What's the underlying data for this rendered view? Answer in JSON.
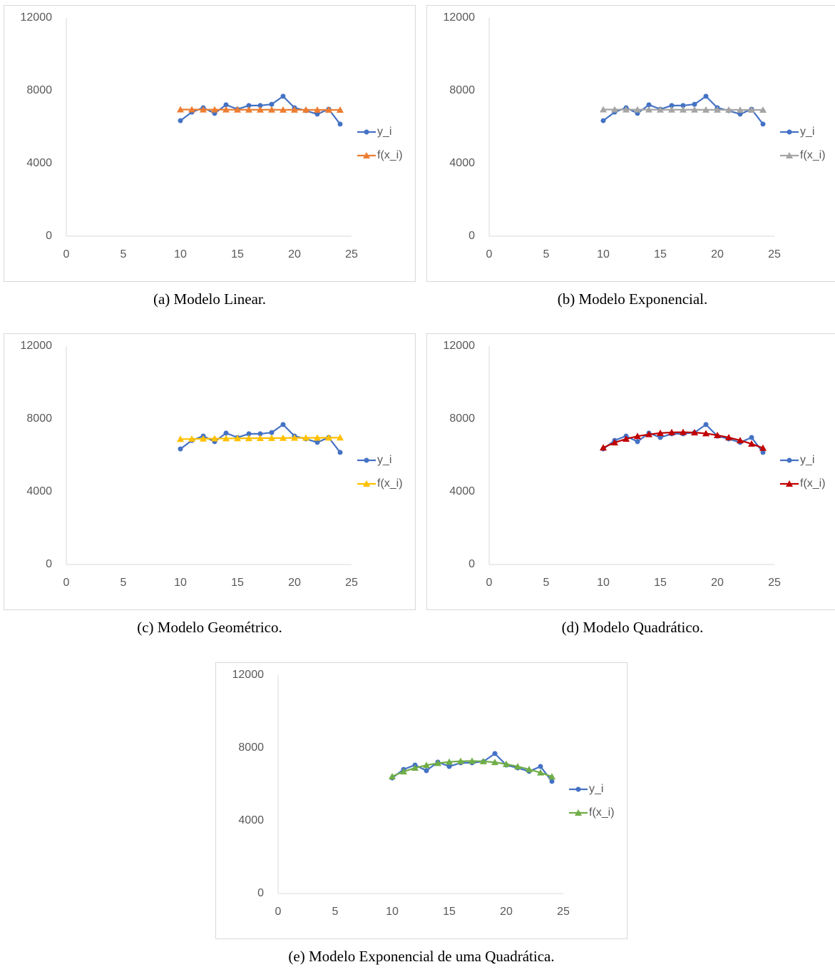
{
  "chart_data": [
    {
      "type": "line",
      "caption": "(a) Modelo Linear.",
      "x": [
        10,
        11,
        12,
        13,
        14,
        15,
        16,
        17,
        18,
        19,
        20,
        21,
        22,
        23,
        24
      ],
      "series": [
        {
          "name": "y_i",
          "color": "#4472c4",
          "marker": "circle",
          "values": [
            6350,
            6820,
            7060,
            6750,
            7220,
            6980,
            7180,
            7180,
            7250,
            7690,
            7060,
            6900,
            6710,
            6980,
            6160
          ]
        },
        {
          "name": "f(x_i)",
          "color": "#ed7d31",
          "marker": "triangle",
          "values": [
            6960,
            6960,
            6955,
            6955,
            6955,
            6950,
            6950,
            6950,
            6950,
            6945,
            6945,
            6945,
            6940,
            6940,
            6940
          ]
        }
      ],
      "xlim": [
        0,
        25
      ],
      "xticks": [
        0,
        5,
        10,
        15,
        20,
        25
      ],
      "ylim": [
        0,
        12000
      ],
      "yticks": [
        0,
        4000,
        8000,
        12000
      ],
      "legend": "right",
      "grid": false
    },
    {
      "type": "line",
      "caption": "(b) Modelo Exponencial.",
      "x": [
        10,
        11,
        12,
        13,
        14,
        15,
        16,
        17,
        18,
        19,
        20,
        21,
        22,
        23,
        24
      ],
      "series": [
        {
          "name": "y_i",
          "color": "#4472c4",
          "marker": "circle",
          "values": [
            6350,
            6820,
            7060,
            6750,
            7220,
            6980,
            7180,
            7180,
            7250,
            7690,
            7060,
            6900,
            6710,
            6980,
            6160
          ]
        },
        {
          "name": "f(x_i)",
          "color": "#a5a5a5",
          "marker": "triangle",
          "values": [
            6960,
            6960,
            6955,
            6955,
            6955,
            6950,
            6950,
            6950,
            6950,
            6945,
            6945,
            6945,
            6940,
            6940,
            6940
          ]
        }
      ],
      "xlim": [
        0,
        25
      ],
      "xticks": [
        0,
        5,
        10,
        15,
        20,
        25
      ],
      "ylim": [
        0,
        12000
      ],
      "yticks": [
        0,
        4000,
        8000,
        12000
      ],
      "legend": "right",
      "grid": false
    },
    {
      "type": "line",
      "caption": "(c) Modelo Geométrico.",
      "x": [
        10,
        11,
        12,
        13,
        14,
        15,
        16,
        17,
        18,
        19,
        20,
        21,
        22,
        23,
        24
      ],
      "series": [
        {
          "name": "y_i",
          "color": "#4472c4",
          "marker": "circle",
          "values": [
            6350,
            6820,
            7060,
            6750,
            7220,
            6980,
            7180,
            7180,
            7250,
            7690,
            7060,
            6900,
            6710,
            6980,
            6160
          ]
        },
        {
          "name": "f(x_i)",
          "color": "#ffc000",
          "marker": "triangle",
          "values": [
            6890,
            6900,
            6910,
            6920,
            6925,
            6930,
            6935,
            6940,
            6945,
            6950,
            6955,
            6960,
            6960,
            6965,
            6970
          ]
        }
      ],
      "xlim": [
        0,
        25
      ],
      "xticks": [
        0,
        5,
        10,
        15,
        20,
        25
      ],
      "ylim": [
        0,
        12000
      ],
      "yticks": [
        0,
        4000,
        8000,
        12000
      ],
      "legend": "right",
      "grid": false
    },
    {
      "type": "line",
      "caption": "(d) Modelo Quadrático.",
      "x": [
        10,
        11,
        12,
        13,
        14,
        15,
        16,
        17,
        18,
        19,
        20,
        21,
        22,
        23,
        24
      ],
      "series": [
        {
          "name": "y_i",
          "color": "#4472c4",
          "marker": "circle",
          "values": [
            6350,
            6820,
            7060,
            6750,
            7220,
            6980,
            7180,
            7180,
            7250,
            7690,
            7060,
            6900,
            6710,
            6980,
            6160
          ]
        },
        {
          "name": "f(x_i)",
          "color": "#c00000",
          "marker": "triangle",
          "values": [
            6420,
            6700,
            6900,
            7050,
            7150,
            7220,
            7260,
            7270,
            7250,
            7200,
            7100,
            6980,
            6820,
            6630,
            6400
          ]
        }
      ],
      "xlim": [
        0,
        25
      ],
      "xticks": [
        0,
        5,
        10,
        15,
        20,
        25
      ],
      "ylim": [
        0,
        12000
      ],
      "yticks": [
        0,
        4000,
        8000,
        12000
      ],
      "legend": "right",
      "grid": false
    },
    {
      "type": "line",
      "caption": "(e) Modelo Exponencial de uma Quadrática.",
      "x": [
        10,
        11,
        12,
        13,
        14,
        15,
        16,
        17,
        18,
        19,
        20,
        21,
        22,
        23,
        24
      ],
      "series": [
        {
          "name": "y_i",
          "color": "#4472c4",
          "marker": "circle",
          "values": [
            6350,
            6820,
            7060,
            6750,
            7220,
            6980,
            7180,
            7180,
            7250,
            7690,
            7060,
            6900,
            6710,
            6980,
            6160
          ]
        },
        {
          "name": "f(x_i)",
          "color": "#70ad47",
          "marker": "triangle",
          "values": [
            6430,
            6700,
            6900,
            7050,
            7160,
            7230,
            7270,
            7280,
            7260,
            7210,
            7110,
            6980,
            6820,
            6640,
            6420
          ]
        }
      ],
      "xlim": [
        0,
        25
      ],
      "xticks": [
        0,
        5,
        10,
        15,
        20,
        25
      ],
      "ylim": [
        0,
        12000
      ],
      "yticks": [
        0,
        4000,
        8000,
        12000
      ],
      "legend": "right",
      "grid": false
    }
  ]
}
